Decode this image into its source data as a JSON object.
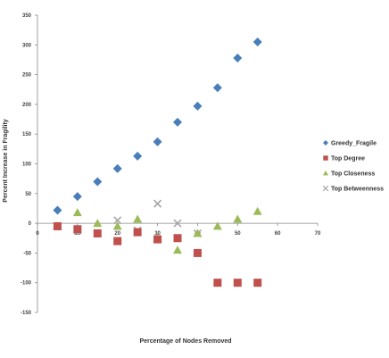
{
  "chart_data": {
    "type": "scatter",
    "title": "",
    "xlabel": "Percentage of Nodes Removed",
    "ylabel": "Percent Increase in Fragility",
    "xlim": [
      0,
      70
    ],
    "ylim": [
      -150,
      350
    ],
    "x_ticks": [
      0,
      10,
      20,
      30,
      40,
      50,
      60,
      70
    ],
    "x_tick_labels": [
      "0",
      "10",
      "20",
      "30",
      "40",
      "50",
      "60",
      "70"
    ],
    "y_ticks": [
      -150,
      -100,
      -50,
      0,
      50,
      100,
      150,
      200,
      250,
      300,
      350
    ],
    "y_tick_labels": [
      "-150",
      "-100",
      "-50",
      "0",
      "50",
      "100",
      "150",
      "200",
      "250",
      "300",
      "350"
    ],
    "grid": false,
    "legend_position": "right",
    "series": [
      {
        "name": "Greedy_Fragile",
        "marker": "diamond",
        "color": "#4a7ebb",
        "x": [
          5,
          10,
          15,
          20,
          25,
          30,
          35,
          40,
          45,
          50,
          55,
          60
        ],
        "y": [
          22,
          45,
          70,
          92,
          113,
          137,
          170,
          197,
          228,
          278,
          305,
          null
        ]
      },
      {
        "name": "Top Degree",
        "marker": "square",
        "color": "#c0504d",
        "x": [
          5,
          10,
          15,
          20,
          25,
          30,
          35,
          40,
          45,
          50,
          55,
          60
        ],
        "y": [
          -5,
          -10,
          -17,
          -30,
          -15,
          -27,
          -25,
          -50,
          -100,
          -100,
          -100,
          null
        ]
      },
      {
        "name": "Top Closeness",
        "marker": "triangle",
        "color": "#9bbb59",
        "x": [
          5,
          10,
          15,
          20,
          25,
          30,
          35,
          40,
          45,
          50,
          55,
          60
        ],
        "y": [
          -5,
          18,
          0,
          -5,
          7,
          -25,
          -45,
          -17,
          -5,
          7,
          20,
          null
        ]
      },
      {
        "name": "Top Betweenness",
        "marker": "x",
        "color": "#a6a6a6",
        "x": [
          5,
          10,
          15,
          20,
          25,
          30,
          35,
          40
        ],
        "y": [
          -5,
          -12,
          -17,
          5,
          -12,
          33,
          0,
          -17
        ]
      }
    ]
  }
}
